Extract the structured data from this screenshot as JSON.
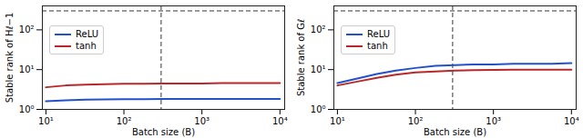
{
  "chart_data": [
    {
      "type": "line",
      "xlabel": "Batch size (B)",
      "ylabel": "Stable rank of Hℓ−1",
      "log": true,
      "legend": "upper left",
      "hline": 300,
      "vline": 300,
      "xlim": [
        9,
        11500
      ],
      "ylim": [
        1,
        400
      ],
      "xticks": [
        {
          "value": 10,
          "label": "10¹"
        },
        {
          "value": 100,
          "label": "10²"
        },
        {
          "value": 1000,
          "label": "10³"
        },
        {
          "value": 10000,
          "label": "10⁴"
        }
      ],
      "yticks": [
        {
          "value": 1,
          "label": "10⁰"
        },
        {
          "value": 10,
          "label": "10¹"
        },
        {
          "value": 100,
          "label": "10²"
        }
      ],
      "x": [
        10,
        18,
        32,
        56,
        100,
        180,
        320,
        560,
        1000,
        1800,
        3200,
        5600,
        10000
      ],
      "series": [
        {
          "name": "ReLU",
          "color": "#2251c9",
          "values": [
            1.6,
            1.7,
            1.75,
            1.78,
            1.8,
            1.8,
            1.82,
            1.82,
            1.83,
            1.83,
            1.83,
            1.84,
            1.84
          ]
        },
        {
          "name": "tanh",
          "color": "#b8282b",
          "values": [
            3.6,
            4.0,
            4.2,
            4.3,
            4.4,
            4.4,
            4.5,
            4.5,
            4.5,
            4.6,
            4.6,
            4.6,
            4.6
          ]
        }
      ]
    },
    {
      "type": "line",
      "xlabel": "Batch size (B)",
      "ylabel": "Stable rank of Gℓ",
      "log": true,
      "legend": "upper left",
      "hline": 300,
      "vline": 300,
      "xlim": [
        9,
        11500
      ],
      "ylim": [
        1,
        400
      ],
      "xticks": [
        {
          "value": 10,
          "label": "10¹"
        },
        {
          "value": 100,
          "label": "10²"
        },
        {
          "value": 1000,
          "label": "10³"
        },
        {
          "value": 10000,
          "label": "10⁴"
        }
      ],
      "yticks": [
        {
          "value": 1,
          "label": "10⁰"
        },
        {
          "value": 10,
          "label": "10¹"
        },
        {
          "value": 100,
          "label": "10²"
        }
      ],
      "x": [
        10,
        18,
        32,
        56,
        100,
        180,
        320,
        560,
        1000,
        1800,
        3200,
        5600,
        10000
      ],
      "series": [
        {
          "name": "ReLU",
          "color": "#2251c9",
          "values": [
            4.6,
            6.0,
            7.8,
            9.5,
            11,
            12.5,
            13,
            13.5,
            13.5,
            14,
            14,
            14,
            14.5
          ]
        },
        {
          "name": "tanh",
          "color": "#b8282b",
          "values": [
            4.0,
            5.0,
            6.2,
            7.5,
            8.5,
            9,
            9.5,
            9.7,
            9.8,
            10,
            10,
            10,
            10
          ]
        }
      ]
    }
  ]
}
